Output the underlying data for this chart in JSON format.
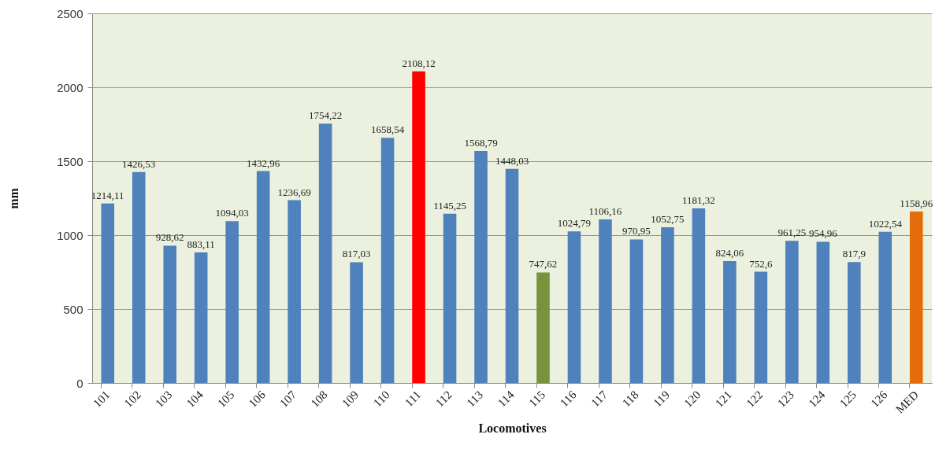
{
  "chart_data": {
    "type": "bar",
    "xlabel": "Locomotives",
    "ylabel": "mm",
    "categories": [
      "101",
      "102",
      "103",
      "104",
      "105",
      "106",
      "107",
      "108",
      "109",
      "110",
      "111",
      "112",
      "113",
      "114",
      "115",
      "116",
      "117",
      "118",
      "119",
      "120",
      "121",
      "122",
      "123",
      "124",
      "125",
      "126",
      "MED"
    ],
    "values": [
      1214.11,
      1426.53,
      928.62,
      883.11,
      1094.03,
      1432.96,
      1236.69,
      1754.22,
      817.03,
      1658.54,
      2108.12,
      1145.25,
      1568.79,
      1448.03,
      747.62,
      1024.79,
      1106.16,
      970.95,
      1052.75,
      1181.32,
      824.06,
      752.6,
      961.25,
      954.96,
      817.9,
      1022.54,
      1158.96
    ],
    "value_labels": [
      "1214,11",
      "1426,53",
      "928,62",
      "883,11",
      "1094,03",
      "1432,96",
      "1236,69",
      "1754,22",
      "817,03",
      "1658,54",
      "2108,12",
      "1145,25",
      "1568,79",
      "1448,03",
      "747,62",
      "1024,79",
      "1106,16",
      "970,95",
      "1052,75",
      "1181,32",
      "824,06",
      "752,6",
      "961,25",
      "954,96",
      "817,9",
      "1022,54",
      "1158,96"
    ],
    "colors": [
      "#4f81bd",
      "#4f81bd",
      "#4f81bd",
      "#4f81bd",
      "#4f81bd",
      "#4f81bd",
      "#4f81bd",
      "#4f81bd",
      "#4f81bd",
      "#4f81bd",
      "#ff0000",
      "#4f81bd",
      "#4f81bd",
      "#4f81bd",
      "#77933c",
      "#4f81bd",
      "#4f81bd",
      "#4f81bd",
      "#4f81bd",
      "#4f81bd",
      "#4f81bd",
      "#4f81bd",
      "#4f81bd",
      "#4f81bd",
      "#4f81bd",
      "#4f81bd",
      "#e46c0a"
    ],
    "ylim": [
      0,
      2500
    ],
    "yticks": [
      0,
      500,
      1000,
      1500,
      2000,
      2500
    ],
    "grid": "y"
  }
}
